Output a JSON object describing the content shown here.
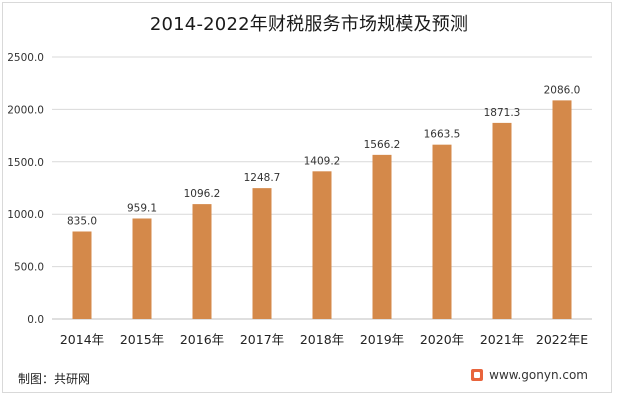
{
  "chart_data": {
    "type": "bar",
    "title": "2014-2022年财税服务市场规模及预测",
    "categories": [
      "2014年",
      "2015年",
      "2016年",
      "2017年",
      "2018年",
      "2019年",
      "2020年",
      "2021年",
      "2022年E"
    ],
    "values": [
      835.0,
      959.1,
      1096.2,
      1248.7,
      1409.2,
      1566.2,
      1663.5,
      1871.3,
      2086.0
    ],
    "value_labels": [
      "835.0",
      "959.1",
      "1096.2",
      "1248.7",
      "1409.2",
      "1566.2",
      "1663.5",
      "1871.3",
      "2086.0"
    ],
    "ylim": [
      0,
      2500
    ],
    "yticks": [
      "0.0",
      "500.0",
      "1000.0",
      "1500.0",
      "2000.0",
      "2500.0"
    ],
    "ytick_values": [
      0,
      500,
      1000,
      1500,
      2000,
      2500
    ],
    "grid": true,
    "legend": "none",
    "bar_color": "#d4894a"
  },
  "footer": {
    "source": "制图：共研网",
    "website": "www.gonyn.com",
    "logo_icon": "gonyn-logo-icon"
  }
}
